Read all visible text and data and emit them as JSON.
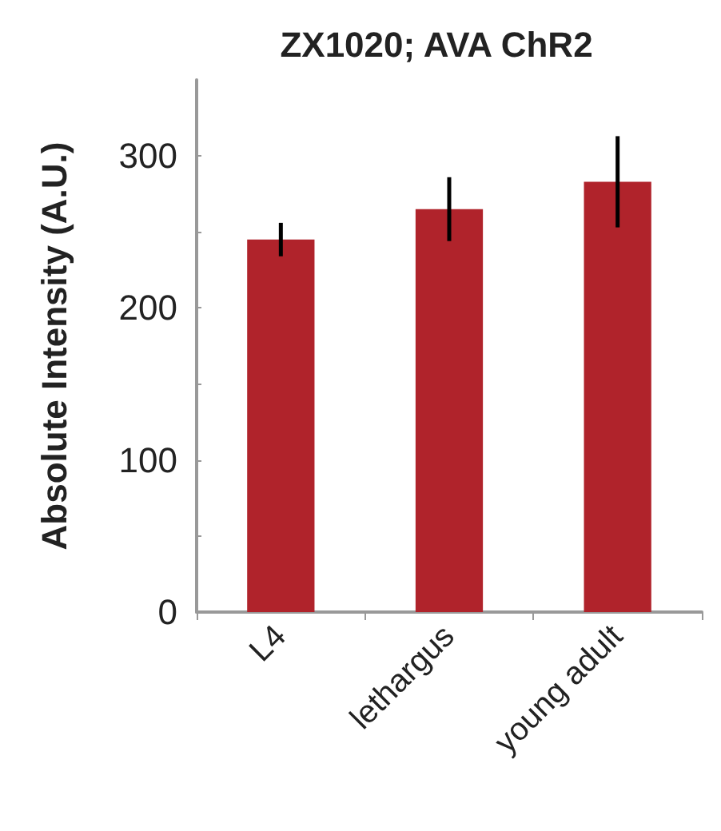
{
  "chart_data": {
    "type": "bar",
    "title": "ZX1020; AVA ChR2",
    "ylabel": "Absolute Intensity (A.U.)",
    "categories": [
      "L4",
      "lethargus",
      "young adult"
    ],
    "values": [
      245,
      265,
      283
    ],
    "errors": [
      11,
      21,
      30
    ],
    "color": "#b0232b",
    "ylim": [
      0,
      350
    ],
    "yticks": [
      0,
      {
        "value": 50,
        "label": null
      },
      100,
      {
        "value": 150,
        "label": null
      },
      200,
      {
        "value": 250,
        "label": null
      },
      300
    ],
    "grid": false
  }
}
